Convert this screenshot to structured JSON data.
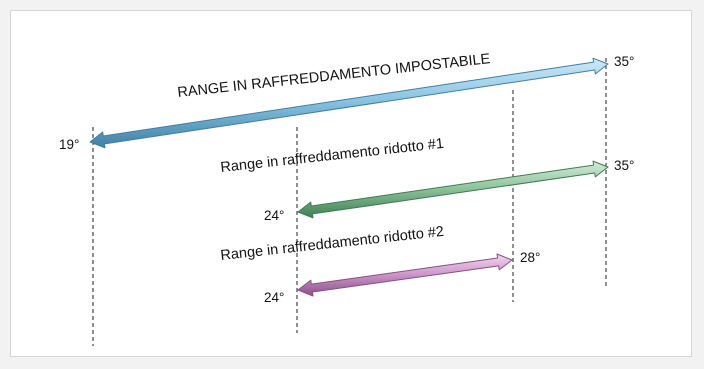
{
  "diagram": {
    "ranges": [
      {
        "label": "RANGE IN RAFFREDDAMENTO IMPOSTABILE",
        "start_label": "19°",
        "end_label": "35°",
        "start_value": 19,
        "end_value": 35,
        "color_light": "#cfe9f5",
        "color_mid": "#8cc6e3",
        "color_dark": "#3f7fa6"
      },
      {
        "label": "Range in raffreddamento ridotto #1",
        "start_label": "24°",
        "end_label": "35°",
        "start_value": 24,
        "end_value": 35,
        "color_light": "#d4ebd9",
        "color_mid": "#93c6a0",
        "color_dark": "#3d7d52"
      },
      {
        "label": "Range in raffreddamento ridotto #2",
        "start_label": "24°",
        "end_label": "28°",
        "start_value": 24,
        "end_value": 28,
        "color_light": "#f0d7ef",
        "color_mid": "#cf9ccb",
        "color_dark": "#8a4f87"
      }
    ]
  }
}
